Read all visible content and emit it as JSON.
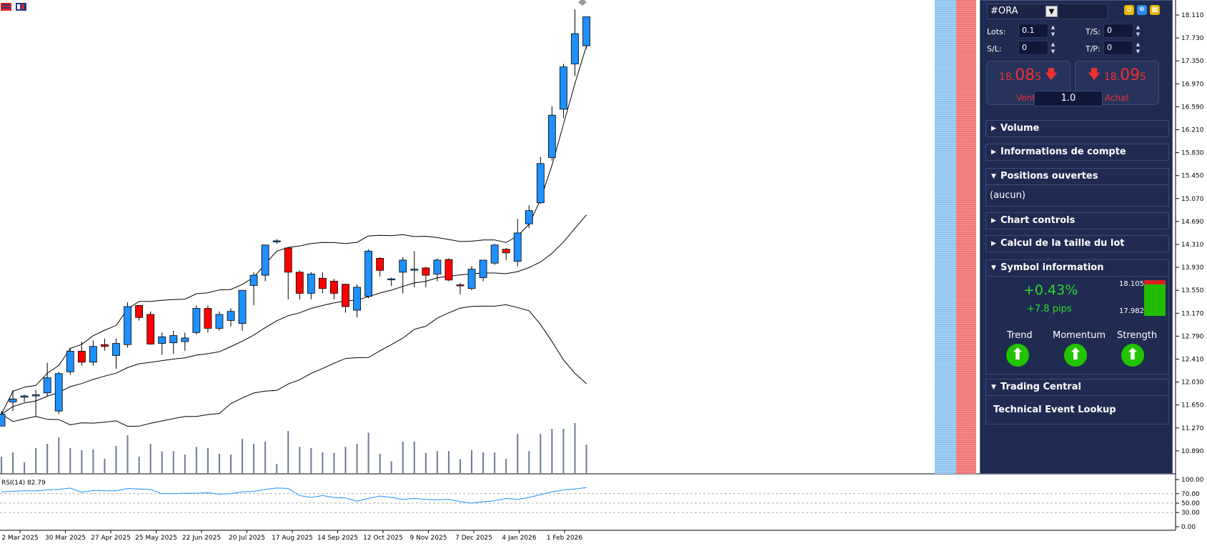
{
  "chart_data": {
    "type": "candlestick",
    "y_ticks": [
      "18.110",
      "17.730",
      "17.350",
      "16.970",
      "16.590",
      "16.210",
      "15.830",
      "15.450",
      "15.070",
      "14.690",
      "14.310",
      "13.930",
      "13.550",
      "13.170",
      "12.790",
      "12.410",
      "12.030",
      "11.650",
      "11.270",
      "10.890"
    ],
    "x_ticks": [
      "2 Mar 2025",
      "30 Mar 2025",
      "27 Apr 2025",
      "25 May 2025",
      "22 Jun 2025",
      "20 Jul 2025",
      "17 Aug 2025",
      "14 Sep 2025",
      "12 Oct 2025",
      "9 Nov 2025",
      "7 Dec 2025",
      "4 Jan 2026",
      "1 Feb 2026"
    ],
    "ylim": [
      10.62,
      18.32
    ],
    "candles": [
      {
        "o": 11.3,
        "h": 11.55,
        "l": 11.3,
        "c": 11.5
      },
      {
        "o": 11.7,
        "h": 11.9,
        "l": 11.55,
        "c": 11.75
      },
      {
        "o": 11.78,
        "h": 11.82,
        "l": 11.7,
        "c": 11.8
      },
      {
        "o": 11.8,
        "h": 11.9,
        "l": 11.45,
        "c": 11.82
      },
      {
        "o": 11.85,
        "h": 12.35,
        "l": 11.8,
        "c": 12.1
      },
      {
        "o": 11.55,
        "h": 12.2,
        "l": 11.5,
        "c": 12.17
      },
      {
        "o": 12.2,
        "h": 12.6,
        "l": 12.15,
        "c": 12.54
      },
      {
        "o": 12.54,
        "h": 12.7,
        "l": 12.3,
        "c": 12.36
      },
      {
        "o": 12.36,
        "h": 12.72,
        "l": 12.3,
        "c": 12.62
      },
      {
        "o": 12.65,
        "h": 12.75,
        "l": 12.55,
        "c": 12.62
      },
      {
        "o": 12.47,
        "h": 12.75,
        "l": 12.25,
        "c": 12.67
      },
      {
        "o": 12.65,
        "h": 13.35,
        "l": 12.6,
        "c": 13.28
      },
      {
        "o": 13.3,
        "h": 13.3,
        "l": 13.05,
        "c": 13.1
      },
      {
        "o": 13.15,
        "h": 13.2,
        "l": 12.65,
        "c": 12.66
      },
      {
        "o": 12.67,
        "h": 12.85,
        "l": 12.48,
        "c": 12.78
      },
      {
        "o": 12.68,
        "h": 12.88,
        "l": 12.5,
        "c": 12.8
      },
      {
        "o": 12.7,
        "h": 12.85,
        "l": 12.55,
        "c": 12.76
      },
      {
        "o": 12.85,
        "h": 13.3,
        "l": 12.82,
        "c": 13.25
      },
      {
        "o": 13.25,
        "h": 13.3,
        "l": 12.85,
        "c": 12.92
      },
      {
        "o": 12.92,
        "h": 13.2,
        "l": 12.88,
        "c": 13.15
      },
      {
        "o": 13.05,
        "h": 13.25,
        "l": 12.95,
        "c": 13.2
      },
      {
        "o": 13.0,
        "h": 13.55,
        "l": 12.88,
        "c": 13.55
      },
      {
        "o": 13.63,
        "h": 13.85,
        "l": 13.3,
        "c": 13.8
      },
      {
        "o": 13.8,
        "h": 14.3,
        "l": 13.7,
        "c": 14.3
      },
      {
        "o": 14.35,
        "h": 14.4,
        "l": 14.32,
        "c": 14.37
      },
      {
        "o": 14.25,
        "h": 14.25,
        "l": 13.4,
        "c": 13.85
      },
      {
        "o": 13.85,
        "h": 13.88,
        "l": 13.4,
        "c": 13.5
      },
      {
        "o": 13.5,
        "h": 13.85,
        "l": 13.4,
        "c": 13.82
      },
      {
        "o": 13.75,
        "h": 13.85,
        "l": 13.5,
        "c": 13.58
      },
      {
        "o": 13.7,
        "h": 13.74,
        "l": 13.4,
        "c": 13.5
      },
      {
        "o": 13.65,
        "h": 13.66,
        "l": 13.18,
        "c": 13.28
      },
      {
        "o": 13.22,
        "h": 13.65,
        "l": 13.1,
        "c": 13.6
      },
      {
        "o": 13.45,
        "h": 14.23,
        "l": 13.42,
        "c": 14.2
      },
      {
        "o": 14.08,
        "h": 14.1,
        "l": 13.78,
        "c": 13.88
      },
      {
        "o": 13.74,
        "h": 13.76,
        "l": 13.62,
        "c": 13.74
      },
      {
        "o": 13.85,
        "h": 14.1,
        "l": 13.5,
        "c": 14.05
      },
      {
        "o": 13.9,
        "h": 14.2,
        "l": 13.6,
        "c": 13.9
      },
      {
        "o": 13.92,
        "h": 13.94,
        "l": 13.6,
        "c": 13.8
      },
      {
        "o": 13.82,
        "h": 14.08,
        "l": 13.7,
        "c": 14.05
      },
      {
        "o": 14.06,
        "h": 14.08,
        "l": 13.7,
        "c": 13.72
      },
      {
        "o": 13.64,
        "h": 13.67,
        "l": 13.48,
        "c": 13.63
      },
      {
        "o": 13.58,
        "h": 13.95,
        "l": 13.55,
        "c": 13.9
      },
      {
        "o": 13.76,
        "h": 14.05,
        "l": 13.7,
        "c": 14.05
      },
      {
        "o": 14.0,
        "h": 14.32,
        "l": 13.97,
        "c": 14.3
      },
      {
        "o": 14.23,
        "h": 14.25,
        "l": 14.05,
        "c": 14.17
      },
      {
        "o": 14.03,
        "h": 14.73,
        "l": 13.95,
        "c": 14.5
      },
      {
        "o": 14.65,
        "h": 14.96,
        "l": 14.58,
        "c": 14.87
      },
      {
        "o": 15.0,
        "h": 15.76,
        "l": 14.98,
        "c": 15.65
      },
      {
        "o": 15.75,
        "h": 16.6,
        "l": 15.7,
        "c": 16.45
      },
      {
        "o": 16.55,
        "h": 17.3,
        "l": 16.4,
        "c": 17.25
      },
      {
        "o": 17.3,
        "h": 18.2,
        "l": 17.1,
        "c": 17.8
      },
      {
        "o": 17.6,
        "h": 18.08,
        "l": 17.55,
        "c": 18.08
      }
    ],
    "rsi": {
      "label": "RSI(14) 82.79",
      "ticks": [
        "100.00",
        "70.00",
        "50.00",
        "30.00",
        "0.00"
      ],
      "values": [
        74,
        75,
        76,
        76,
        78,
        79,
        82,
        73,
        77,
        76,
        76,
        81,
        80,
        79,
        70,
        70,
        71,
        71,
        72,
        69,
        70,
        74,
        75,
        79,
        82,
        81,
        66,
        62,
        66,
        62,
        61,
        54,
        60,
        65,
        62,
        58,
        60,
        58,
        57,
        58,
        53,
        50,
        53,
        55,
        60,
        58,
        62,
        68,
        74,
        78,
        80,
        83
      ]
    }
  },
  "panel": {
    "symbol": "#ORA",
    "lots_label": "Lots:",
    "lots_value": "0.1",
    "ts_label": "T/S:",
    "ts_value": "0",
    "sl_label": "S/L:",
    "sl_value": "0",
    "tp_label": "T/P:",
    "tp_value": "0",
    "sell": {
      "prefix": "18.",
      "big": "08",
      "suffix": "5",
      "label": "Vente"
    },
    "buy": {
      "prefix": "18.",
      "big": "09",
      "suffix": "5",
      "label": "Achat"
    },
    "lot_size": "1.0",
    "sections": {
      "volume": "Volume",
      "account": "Informations de compte",
      "positions": "Positions ouvertes",
      "positions_body": "(aucun)",
      "chart_controls": "Chart controls",
      "lot_calc": "Calcul de la taille du lot",
      "symbol_info": "Symbol information",
      "trading_central": "Trading Central",
      "event_lookup": "Technical Event Lookup"
    },
    "symbol_info": {
      "change_pct": "+0.43%",
      "change_pips": "+7.8 pips",
      "high": "18.105",
      "low": "17.982",
      "trend": "Trend",
      "momentum": "Momentum",
      "strength": "Strength"
    }
  },
  "colors": {
    "bull": "#1e90ff",
    "bear": "#ff0000",
    "panel_bg": "#1f2b50",
    "green": "#22c400"
  }
}
